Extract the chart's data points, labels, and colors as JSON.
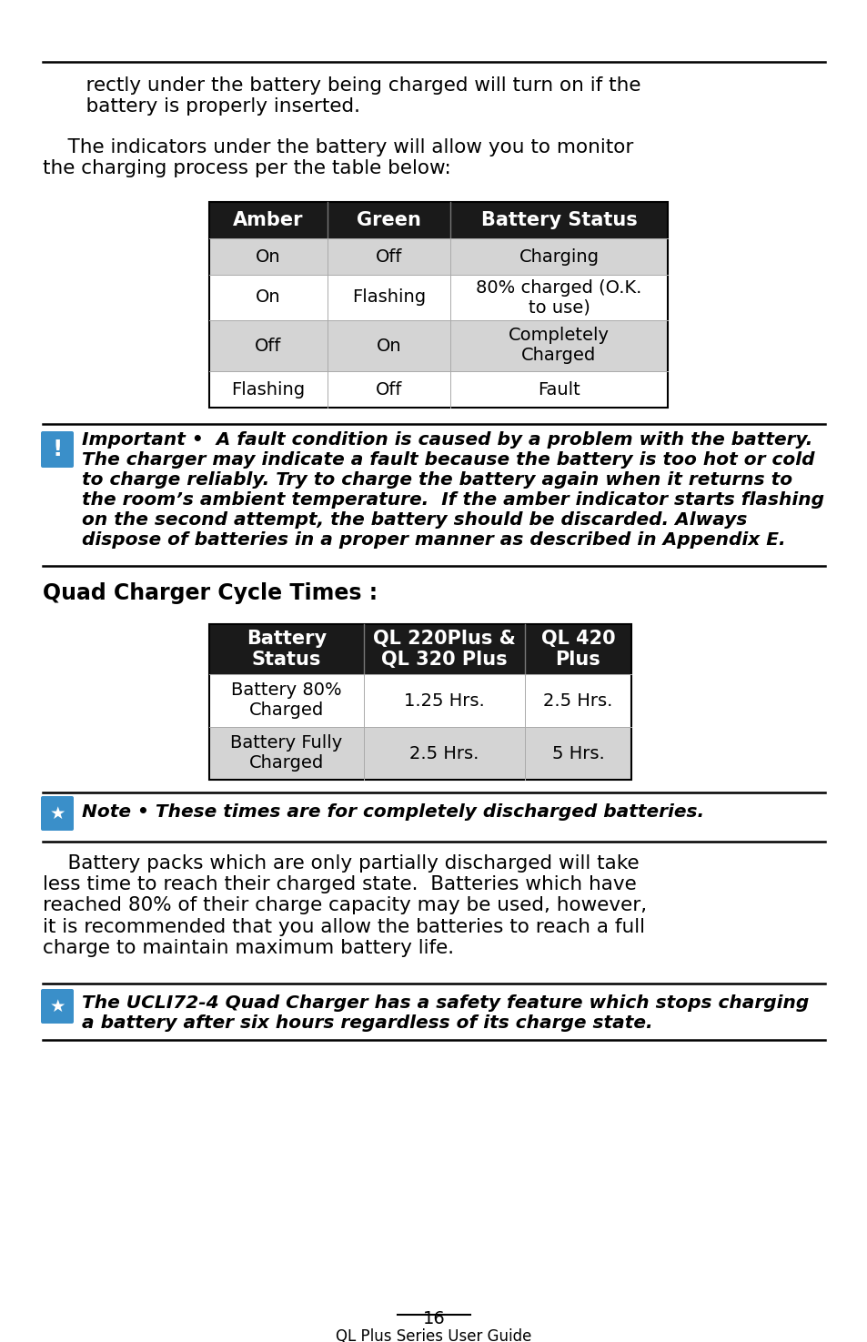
{
  "bg_color": "#ffffff",
  "indent_text_1": "    rectly under the battery being charged will turn on if the\n    battery is properly inserted.",
  "para_text_1": "    The indicators under the battery will allow you to monitor\nthe charging process per the table below:",
  "table1_header": [
    "Amber",
    "Green",
    "Battery Status"
  ],
  "table1_rows": [
    [
      "On",
      "Off",
      "Charging"
    ],
    [
      "On",
      "Flashing",
      "80% charged (O.K.\nto use)"
    ],
    [
      "Off",
      "On",
      "Completely\nCharged"
    ],
    [
      "Flashing",
      "Off",
      "Fault"
    ]
  ],
  "important_text": "Important •  A fault condition is caused by a problem with the battery.\nThe charger may indicate a fault because the battery is too hot or cold\nto charge reliably. Try to charge the battery again when it returns to\nthe room’s ambient temperature.  If the amber indicator starts flashing\non the second attempt, the battery should be discarded. Always\ndispose of batteries in a proper manner as described in Appendix E.",
  "section_heading": "Quad Charger Cycle Times :",
  "table2_header": [
    "Battery\nStatus",
    "QL 220Plus &\nQL 320 Plus",
    "QL 420\nPlus"
  ],
  "table2_rows": [
    [
      "Battery 80%\nCharged",
      "1.25 Hrs.",
      "2.5 Hrs."
    ],
    [
      "Battery Fully\nCharged",
      "2.5 Hrs.",
      "5 Hrs."
    ]
  ],
  "note_text": "Note • These times are for completely discharged batteries.",
  "para_text_2": "    Battery packs which are only partially discharged will take\nless time to reach their charged state.  Batteries which have\nreached 80% of their charge capacity may be used, however,\nit is recommended that you allow the batteries to reach a full\ncharge to maintain maximum battery life.",
  "note2_text": "The UCLI72-4 Quad Charger has a safety feature which stops charging\na battery after six hours regardless of its charge state.",
  "footer_page": "16",
  "footer_guide": "QL Plus Series User Guide",
  "header_bg": "#1a1a1a",
  "header_fg": "#ffffff",
  "row_even_bg": "#ffffff",
  "row_odd_bg": "#d4d4d4",
  "icon_color": "#3a8fc9",
  "body_fontsize": 15.5,
  "table_fontsize": 14,
  "imp_fontsize": 14.5,
  "heading_fontsize": 17
}
